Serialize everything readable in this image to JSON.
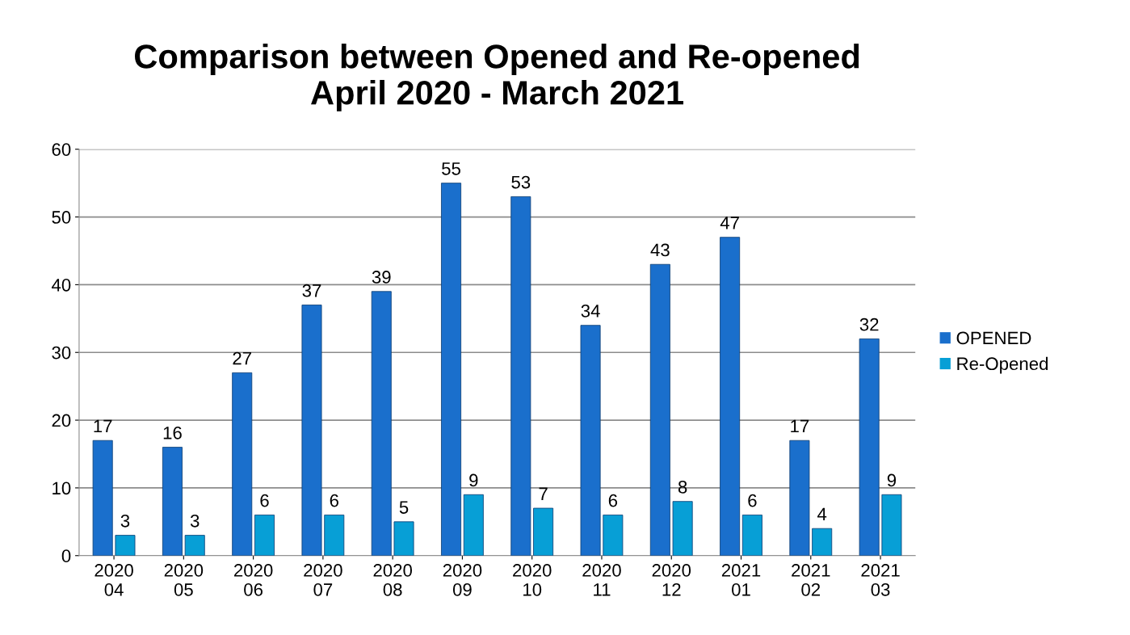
{
  "chart_data": {
    "type": "bar",
    "title": "Comparison between Opened and Re-opened\nApril 2020 - March 2021",
    "categories": [
      "2020\n04",
      "2020\n05",
      "2020\n06",
      "2020\n07",
      "2020\n08",
      "2020\n09",
      "2020\n10",
      "2020\n11",
      "2020\n12",
      "2021\n01",
      "2021\n02",
      "2021\n03"
    ],
    "series": [
      {
        "name": "OPENED",
        "color": "#1a6fcc",
        "values": [
          17,
          16,
          27,
          37,
          39,
          55,
          53,
          34,
          43,
          47,
          17,
          32
        ]
      },
      {
        "name": "Re-Opened",
        "color": "#079fd6",
        "values": [
          3,
          3,
          6,
          6,
          5,
          9,
          7,
          6,
          8,
          6,
          4,
          9
        ]
      }
    ],
    "ylim": [
      0,
      60
    ],
    "yticks": [
      0,
      10,
      20,
      30,
      40,
      50,
      60
    ],
    "grid": "y",
    "legend": "right",
    "data_labels": true
  }
}
